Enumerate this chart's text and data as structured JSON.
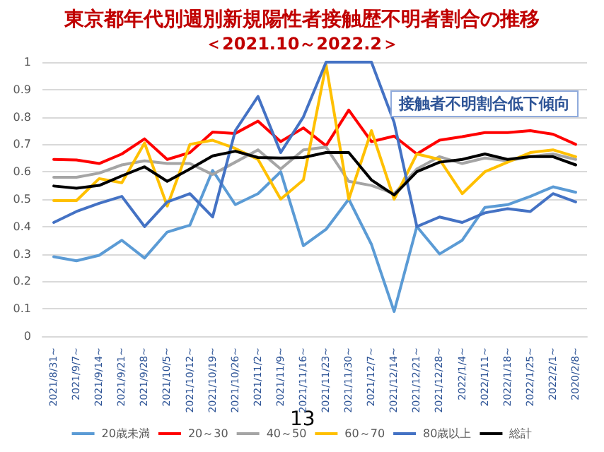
{
  "chart_data": {
    "type": "line",
    "title": "東京都年代別週別新規陽性者接触歴不明者割合の推移",
    "subtitle": "＜2021.10～2022.2＞",
    "categories": [
      "2021/8/31~",
      "2021/9/7~",
      "2021/9/14~",
      "2021/9/21~",
      "2021/9/28~",
      "2021/10/5~",
      "2021/10/12~",
      "2021/10/19~",
      "2021/10/26~",
      "2021/11/2~",
      "2021/11/9~",
      "2021/11/16~",
      "2021/11/23~",
      "2021/11/30~",
      "2021/12/7~",
      "2021/12/14~",
      "2021/12/21~",
      "2021/12/28~",
      "2022/1/4~",
      "2022/1/11~",
      "2022/1/18~",
      "2022/1/25~",
      "2022/2/1~",
      "2020/2/8~"
    ],
    "series": [
      {
        "name": "20歳未満",
        "color": "#5b9bd5",
        "values": [
          0.29,
          0.275,
          0.295,
          0.35,
          0.285,
          0.38,
          0.405,
          0.605,
          0.48,
          0.52,
          0.6,
          0.33,
          0.39,
          0.5,
          0.335,
          0.09,
          0.4,
          0.3,
          0.35,
          0.47,
          0.48,
          0.51,
          0.545,
          0.525
        ]
      },
      {
        "name": "20～30",
        "color": "#ff0000",
        "values": [
          0.645,
          0.643,
          0.63,
          0.665,
          0.72,
          0.645,
          0.67,
          0.745,
          0.74,
          0.785,
          0.71,
          0.76,
          0.695,
          0.825,
          0.71,
          0.73,
          0.665,
          0.715,
          0.728,
          0.743,
          0.743,
          0.75,
          0.737,
          0.7
        ]
      },
      {
        "name": "40～50",
        "color": "#a5a5a5",
        "values": [
          0.58,
          0.58,
          0.595,
          0.625,
          0.64,
          0.63,
          0.63,
          0.59,
          0.635,
          0.68,
          0.61,
          0.68,
          0.69,
          0.565,
          0.55,
          0.52,
          0.61,
          0.655,
          0.63,
          0.65,
          0.64,
          0.655,
          0.665,
          0.645
        ]
      },
      {
        "name": "60～70",
        "color": "#ffc000",
        "values": [
          0.495,
          0.495,
          0.575,
          0.56,
          0.705,
          0.475,
          0.7,
          0.715,
          0.685,
          0.645,
          0.5,
          0.57,
          0.99,
          0.5,
          0.75,
          0.5,
          0.665,
          0.645,
          0.52,
          0.6,
          0.635,
          0.67,
          0.68,
          0.655
        ]
      },
      {
        "name": "80歳以上",
        "color": "#4472c4",
        "values": [
          0.415,
          0.455,
          0.485,
          0.51,
          0.4,
          0.49,
          0.52,
          0.435,
          0.75,
          0.875,
          0.67,
          0.8,
          1.0,
          1.0,
          1.0,
          0.78,
          0.4,
          0.435,
          0.415,
          0.45,
          0.465,
          0.455,
          0.52,
          0.49
        ]
      },
      {
        "name": "総計",
        "color": "#000000",
        "values": [
          0.548,
          0.54,
          0.55,
          0.585,
          0.618,
          0.565,
          0.61,
          0.658,
          0.675,
          0.652,
          0.65,
          0.652,
          0.67,
          0.67,
          0.57,
          0.515,
          0.6,
          0.635,
          0.645,
          0.665,
          0.645,
          0.655,
          0.655,
          0.625
        ]
      }
    ],
    "ylim": [
      0,
      1
    ],
    "yticks": [
      0,
      0.1,
      0.2,
      0.3,
      0.4,
      0.5,
      0.6,
      0.7,
      0.8,
      0.9,
      1
    ],
    "grid": "y",
    "legend": "bottom",
    "marker": "none",
    "line_style": "solid",
    "annotations": [
      "接触者不明割合低下傾向",
      "13"
    ]
  }
}
